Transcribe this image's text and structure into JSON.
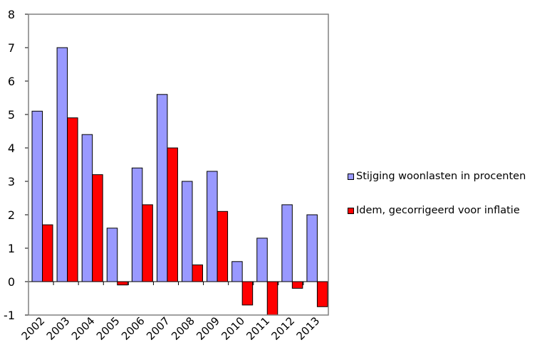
{
  "chart_data": {
    "type": "bar",
    "categories": [
      "2002",
      "2003",
      "2004",
      "2005",
      "2006",
      "2007",
      "2008",
      "2009",
      "2010",
      "2011",
      "2012",
      "2013"
    ],
    "series": [
      {
        "name": "Stijging woonlasten in procenten",
        "color": "#9999ff",
        "values": [
          5.1,
          7.0,
          4.4,
          1.6,
          3.4,
          5.6,
          3.0,
          3.3,
          0.6,
          1.3,
          2.3,
          2.0
        ]
      },
      {
        "name": "Idem, gecorrigeerd voor inflatie",
        "color": "#ff0000",
        "values": [
          1.7,
          4.9,
          3.2,
          -0.1,
          2.3,
          4.0,
          0.5,
          2.1,
          -0.7,
          -1.0,
          -0.2,
          -0.75
        ]
      }
    ],
    "yticks": [
      "8",
      "7",
      "6",
      "5",
      "4",
      "3",
      "2",
      "1",
      "0",
      "-1"
    ],
    "ylim": [
      -1,
      8
    ],
    "title": "",
    "xlabel": "",
    "ylabel": "",
    "grid": false,
    "legend_position": "right"
  }
}
